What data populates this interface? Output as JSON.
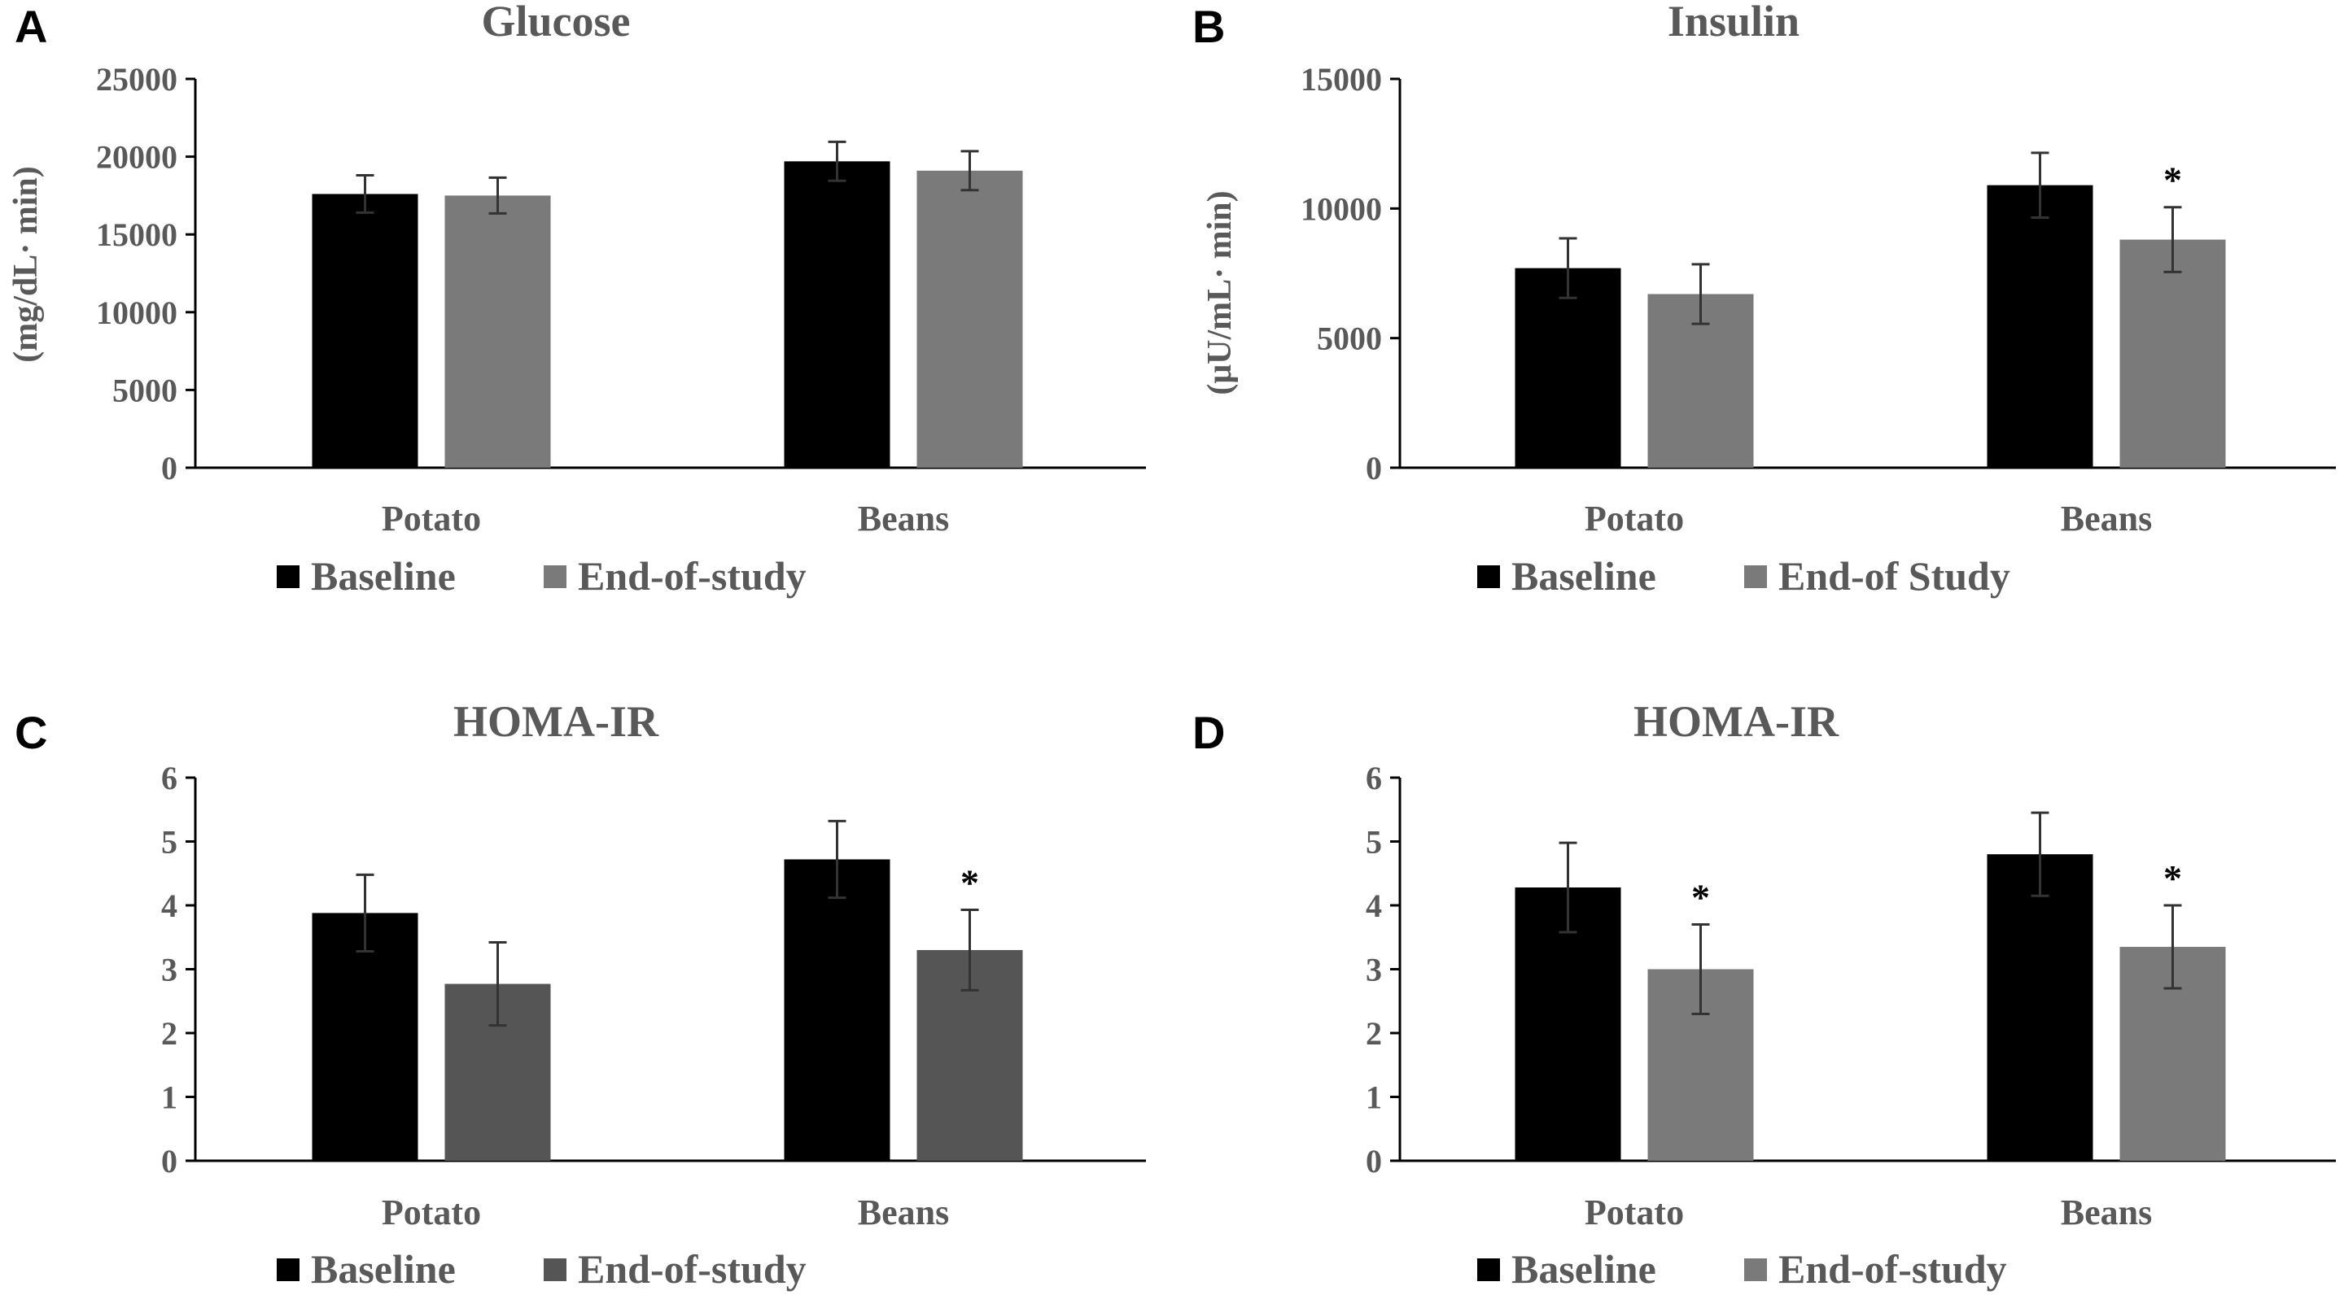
{
  "chart_data": [
    {
      "panel": "A",
      "type": "bar",
      "title": "Glucose",
      "ylabel": "(mg/dL· min)",
      "xlabel": "",
      "categories": [
        "Potato",
        "Beans"
      ],
      "ylim": [
        0,
        25000
      ],
      "yticks": [
        0,
        5000,
        10000,
        15000,
        20000,
        25000
      ],
      "series": [
        {
          "name": "Baseline",
          "color": "#000000",
          "values": [
            17600,
            19700
          ],
          "errors": [
            1200,
            1250
          ],
          "significant": [
            false,
            false
          ]
        },
        {
          "name": "End-of-study",
          "color": "#7a7a7a",
          "values": [
            17500,
            19100
          ],
          "errors": [
            1150,
            1250
          ],
          "significant": [
            false,
            false
          ]
        }
      ],
      "legend_position": "bottom-left"
    },
    {
      "panel": "B",
      "type": "bar",
      "title": "Insulin",
      "ylabel": "(μU/mL· min)",
      "xlabel": "",
      "categories": [
        "Potato",
        "Beans"
      ],
      "ylim": [
        0,
        15000
      ],
      "yticks": [
        0,
        5000,
        10000,
        15000
      ],
      "series": [
        {
          "name": "Baseline",
          "color": "#000000",
          "values": [
            7700,
            10900
          ],
          "errors": [
            1150,
            1250
          ],
          "significant": [
            false,
            false
          ]
        },
        {
          "name": "End-of Study",
          "color": "#7a7a7a",
          "values": [
            6700,
            8800
          ],
          "errors": [
            1150,
            1250
          ],
          "significant": [
            false,
            true
          ]
        }
      ],
      "legend_position": "bottom-left"
    },
    {
      "panel": "C",
      "type": "bar",
      "title": "HOMA-IR",
      "ylabel": "",
      "xlabel": "",
      "categories": [
        "Potato",
        "Beans"
      ],
      "ylim": [
        0,
        6
      ],
      "yticks": [
        0,
        1,
        2,
        3,
        4,
        5,
        6
      ],
      "series": [
        {
          "name": "Baseline",
          "color": "#000000",
          "values": [
            3.88,
            4.72
          ],
          "errors": [
            0.6,
            0.6
          ],
          "significant": [
            false,
            false
          ]
        },
        {
          "name": "End-of-study",
          "color": "#555555",
          "values": [
            2.77,
            3.3
          ],
          "errors": [
            0.65,
            0.63
          ],
          "significant": [
            false,
            true
          ]
        }
      ],
      "legend_position": "bottom-left"
    },
    {
      "panel": "D",
      "type": "bar",
      "title": "HOMA-IR",
      "ylabel": "",
      "xlabel": "",
      "categories": [
        "Potato",
        "Beans"
      ],
      "ylim": [
        0,
        6
      ],
      "yticks": [
        0,
        1,
        2,
        3,
        4,
        5,
        6
      ],
      "series": [
        {
          "name": "Baseline",
          "color": "#000000",
          "values": [
            4.28,
            4.8
          ],
          "errors": [
            0.7,
            0.65
          ],
          "significant": [
            false,
            false
          ]
        },
        {
          "name": "End-of-study",
          "color": "#7a7a7a",
          "values": [
            3.0,
            3.35
          ],
          "errors": [
            0.7,
            0.65
          ],
          "significant": [
            true,
            true
          ]
        }
      ],
      "legend_position": "bottom-left"
    }
  ]
}
